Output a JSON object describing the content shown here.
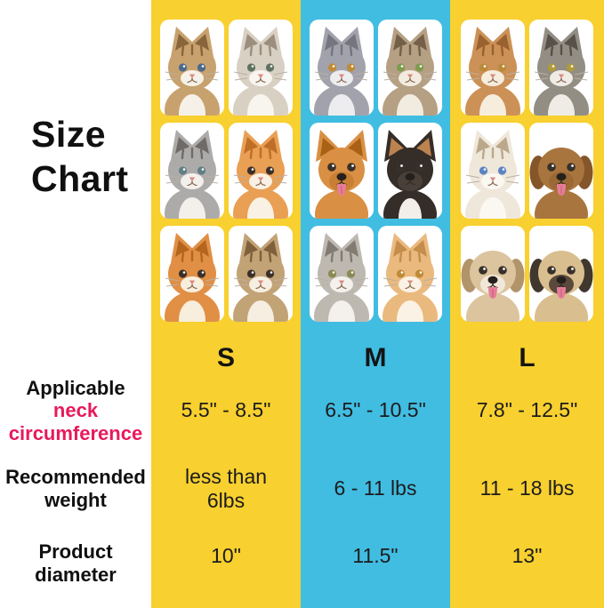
{
  "title": {
    "text": "Size\nChart"
  },
  "colors": {
    "yellow": "#F8D02F",
    "cyan": "#41BDE2",
    "pink": "#E8195C",
    "ink": "#101010"
  },
  "labels": {
    "neck_line1": "Applicable",
    "neck_line2": "neck",
    "neck_line3": "circumference",
    "weight": "Recommended\nweight",
    "diameter": "Product\ndiameter"
  },
  "columns": [
    {
      "size": "S",
      "bg": "#F8D02F",
      "neck": "5.5\" - 8.5\"",
      "weight": "less than\n6lbs",
      "diameter": "10\"",
      "pets": [
        {
          "kind": "cat",
          "desc": "fluffy-brown-kitten",
          "fur": "#C8A26E",
          "shade": "#89653C",
          "muzzle": "#F6F1E8",
          "eye": "#4A6A8A"
        },
        {
          "kind": "cat",
          "desc": "silver-tabby-kitten",
          "fur": "#D9D0C4",
          "shade": "#9C8E7E",
          "muzzle": "#F8F5EF",
          "eye": "#5E7260"
        },
        {
          "kind": "cat",
          "desc": "gray-tabby-kitten",
          "fur": "#ADABA9",
          "shade": "#6F6B69",
          "muzzle": "#F3F0EB",
          "eye": "#5F7F84"
        },
        {
          "kind": "cat",
          "desc": "orange-tabby-kitten",
          "fur": "#E99F54",
          "shade": "#BF6E28",
          "muzzle": "#F9F1E3",
          "eye": "#3B3029"
        },
        {
          "kind": "cat",
          "desc": "ginger-kitten",
          "fur": "#E18F45",
          "shade": "#B4651E",
          "muzzle": "#F8EEDD",
          "eye": "#3B3029"
        },
        {
          "kind": "cat",
          "desc": "brown-tabby-kitten",
          "fur": "#C2A376",
          "shade": "#7F603A",
          "muzzle": "#F5EEE1",
          "eye": "#3B3029"
        }
      ]
    },
    {
      "size": "M",
      "bg": "#41BDE2",
      "neck": "6.5\" - 10.5\"",
      "weight": "6 - 11 lbs",
      "diameter": "11.5\"",
      "pets": [
        {
          "kind": "cat",
          "desc": "gray-british-shorthair",
          "fur": "#A2A2AC",
          "shade": "#75757F",
          "muzzle": "#EDEDF0",
          "eye": "#C08A36"
        },
        {
          "kind": "cat",
          "desc": "brown-tabby-cat",
          "fur": "#B5A083",
          "shade": "#746049",
          "muzzle": "#F2ECE0",
          "eye": "#7E9A4E"
        },
        {
          "kind": "dog",
          "ears": "up",
          "tongue": true,
          "desc": "pomeranian",
          "fur": "#D98F44",
          "shade": "#A96115",
          "muzzle": "#C97F33"
        },
        {
          "kind": "dog",
          "ears": "up",
          "tongue": false,
          "desc": "chihuahua",
          "fur": "#352D28",
          "shade": "#BC8350",
          "muzzle": "#4A403A",
          "chest": "#F2EFEA"
        },
        {
          "kind": "cat",
          "desc": "gray-tabby-cat",
          "fur": "#BDB9B1",
          "shade": "#817B71",
          "muzzle": "#F4F1EC",
          "eye": "#8A8A52"
        },
        {
          "kind": "cat",
          "desc": "cream-tabby-cat",
          "fur": "#EAB97E",
          "shade": "#C48D4C",
          "muzzle": "#FAF2E4",
          "eye": "#C08A36"
        }
      ]
    },
    {
      "size": "L",
      "bg": "#F8D02F",
      "neck": "7.8\" - 12.5\"",
      "weight": "11 - 18 lbs",
      "diameter": "13\"",
      "pets": [
        {
          "kind": "cat",
          "desc": "fluffy-ginger-cat",
          "fur": "#CC9157",
          "shade": "#99612F",
          "muzzle": "#F6EDDD",
          "eye": "#B98A3A"
        },
        {
          "kind": "cat",
          "desc": "maine-coon-cat",
          "fur": "#938E84",
          "shade": "#57514A",
          "muzzle": "#EFECE5",
          "eye": "#B09A3A"
        },
        {
          "kind": "cat",
          "desc": "ragdoll-cat",
          "fur": "#EFE7DA",
          "shade": "#BBA88B",
          "muzzle": "#FBF8F2",
          "eye": "#5B84C4"
        },
        {
          "kind": "dog",
          "ears": "floppy",
          "tongue": true,
          "desc": "toy-poodle",
          "fur": "#A9753F",
          "shade": "#84562A",
          "muzzle": "#9A6935"
        },
        {
          "kind": "dog",
          "ears": "floppy",
          "tongue": true,
          "desc": "havanese-puppy",
          "fur": "#DCC49E",
          "shade": "#B2946A",
          "muzzle": "#F0E7D8"
        },
        {
          "kind": "dog",
          "ears": "floppy",
          "tongue": true,
          "desc": "pug",
          "fur": "#D9BE8F",
          "shade": "#40372E",
          "muzzle": "#5A4A3B"
        }
      ]
    }
  ],
  "chart_data": {
    "type": "table",
    "title": "Size Chart",
    "columns": [
      "S",
      "M",
      "L"
    ],
    "rows": [
      {
        "label": "Applicable neck circumference",
        "values": [
          "5.5\" - 8.5\"",
          "6.5\" - 10.5\"",
          "7.8\" - 12.5\""
        ]
      },
      {
        "label": "Recommended weight",
        "values": [
          "less than 6lbs",
          "6 - 11 lbs",
          "11 - 18 lbs"
        ]
      },
      {
        "label": "Product diameter",
        "values": [
          "10\"",
          "11.5\"",
          "13\""
        ]
      }
    ]
  }
}
